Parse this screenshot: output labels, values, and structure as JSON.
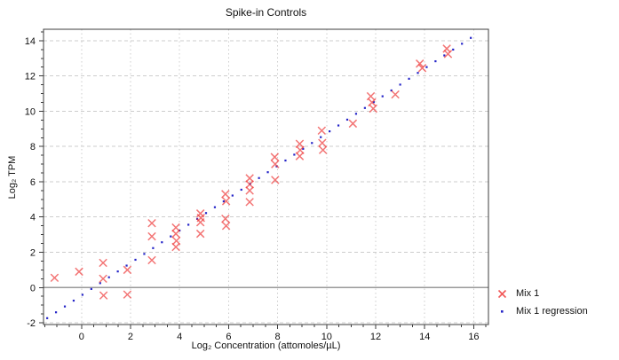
{
  "title": "Spike-in Controls",
  "axes": {
    "x_label": "Log₂ Concentration (attomoles/µL)",
    "y_label": "Log₂ TPM",
    "x_major_ticks": [
      0,
      2,
      4,
      6,
      8,
      10,
      12,
      14,
      16
    ],
    "y_major_ticks": [
      -2,
      0,
      2,
      4,
      6,
      8,
      10,
      12,
      14
    ],
    "minor_tick_step": 0.5
  },
  "legend": {
    "items": [
      {
        "label": "Mix 1",
        "marker": "red-x"
      },
      {
        "label": "Mix 1 regression",
        "marker": "blue-dot"
      }
    ]
  },
  "chart_data": {
    "type": "scatter",
    "title": "Spike-in Controls",
    "xlabel": "Log₂ Concentration (attomoles/µL)",
    "ylabel": "Log₂ TPM",
    "xlim": [
      -1.55,
      16.6
    ],
    "ylim": [
      -2.1,
      14.65
    ],
    "grid": true,
    "zero_line_y": 0,
    "legend_position": "bottom-right",
    "colors": {
      "grid": "#cdcdcd",
      "zero_line": "#9a9a9a",
      "frame": "#3c3c3c",
      "text": "#111111"
    },
    "series": [
      {
        "name": "Mix 1",
        "marker": "x",
        "color": "#ee3b3b",
        "points": [
          [
            -1.1,
            0.55
          ],
          [
            -0.1,
            0.9
          ],
          [
            0.88,
            1.4
          ],
          [
            0.88,
            0.5
          ],
          [
            0.9,
            -0.45
          ],
          [
            1.87,
            1.0
          ],
          [
            1.87,
            -0.4
          ],
          [
            2.87,
            3.65
          ],
          [
            2.87,
            2.9
          ],
          [
            2.87,
            1.55
          ],
          [
            3.85,
            3.4
          ],
          [
            3.85,
            3.05
          ],
          [
            3.87,
            2.65
          ],
          [
            3.85,
            2.3
          ],
          [
            4.85,
            4.2
          ],
          [
            4.87,
            3.95
          ],
          [
            4.85,
            3.7
          ],
          [
            4.85,
            3.05
          ],
          [
            5.87,
            5.3
          ],
          [
            5.9,
            4.9
          ],
          [
            5.87,
            3.9
          ],
          [
            5.9,
            3.5
          ],
          [
            6.86,
            6.2
          ],
          [
            6.86,
            5.85
          ],
          [
            6.86,
            5.5
          ],
          [
            6.86,
            4.85
          ],
          [
            7.88,
            7.4
          ],
          [
            7.9,
            7.0
          ],
          [
            7.9,
            6.1
          ],
          [
            8.9,
            8.15
          ],
          [
            8.92,
            7.8
          ],
          [
            8.9,
            7.45
          ],
          [
            9.8,
            8.9
          ],
          [
            9.82,
            8.2
          ],
          [
            9.85,
            7.8
          ],
          [
            11.07,
            9.3
          ],
          [
            11.8,
            10.85
          ],
          [
            11.85,
            10.5
          ],
          [
            11.9,
            10.15
          ],
          [
            12.8,
            10.95
          ],
          [
            13.8,
            12.7
          ],
          [
            13.9,
            12.45
          ],
          [
            14.9,
            13.55
          ],
          [
            14.95,
            13.25
          ]
        ]
      },
      {
        "name": "Mix 1 regression",
        "marker": "dotted-line",
        "color": "#2525c8",
        "slope": 0.92,
        "intercept": -0.45,
        "x_start": -1.4,
        "x_end": 16.2,
        "dot_step": 0.36
      }
    ]
  }
}
